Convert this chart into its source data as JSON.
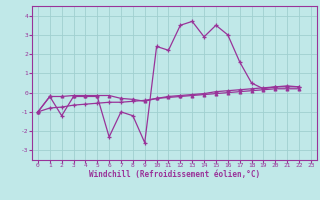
{
  "xlabel": "Windchill (Refroidissement éolien,°C)",
  "bg_color": "#c0e8e8",
  "grid_color": "#a0d0d0",
  "line_color": "#993399",
  "spine_color": "#993399",
  "xlim": [
    -0.5,
    23.5
  ],
  "ylim": [
    -3.5,
    4.5
  ],
  "xticks": [
    0,
    1,
    2,
    3,
    4,
    5,
    6,
    7,
    8,
    9,
    10,
    11,
    12,
    13,
    14,
    15,
    16,
    17,
    18,
    19,
    20,
    21,
    22,
    23
  ],
  "yticks": [
    -3,
    -2,
    -1,
    0,
    1,
    2,
    3,
    4
  ],
  "series1_x": [
    0,
    1,
    2,
    3,
    4,
    5,
    6,
    7,
    8,
    9,
    10,
    11,
    12,
    13,
    14,
    15,
    16,
    17,
    18,
    19,
    20,
    21,
    22
  ],
  "series1_y": [
    -1.0,
    -0.2,
    -1.2,
    -0.2,
    -0.2,
    -0.2,
    -2.3,
    -1.0,
    -1.2,
    -2.6,
    2.4,
    2.2,
    3.5,
    3.7,
    2.9,
    3.5,
    3.0,
    1.6,
    0.5,
    0.2,
    0.3,
    0.35,
    0.3
  ],
  "series2_x": [
    0,
    1,
    2,
    3,
    4,
    5,
    6,
    7,
    8,
    9,
    10,
    11,
    12,
    13,
    14,
    15,
    16,
    17,
    18,
    19,
    20,
    21,
    22
  ],
  "series2_y": [
    -1.0,
    -0.8,
    -0.75,
    -0.65,
    -0.6,
    -0.55,
    -0.5,
    -0.5,
    -0.45,
    -0.4,
    -0.3,
    -0.2,
    -0.15,
    -0.1,
    -0.05,
    0.05,
    0.1,
    0.15,
    0.2,
    0.25,
    0.3,
    0.3,
    0.3
  ],
  "series3_x": [
    0,
    1,
    2,
    3,
    4,
    5,
    6,
    7,
    8,
    9,
    10,
    11,
    12,
    13,
    14,
    15,
    16,
    17,
    18,
    19,
    20,
    21,
    22
  ],
  "series3_y": [
    -1.0,
    -0.2,
    -0.2,
    -0.15,
    -0.15,
    -0.15,
    -0.15,
    -0.3,
    -0.35,
    -0.45,
    -0.3,
    -0.25,
    -0.2,
    -0.15,
    -0.1,
    -0.05,
    0.0,
    0.05,
    0.1,
    0.15,
    0.2,
    0.2,
    0.2
  ]
}
